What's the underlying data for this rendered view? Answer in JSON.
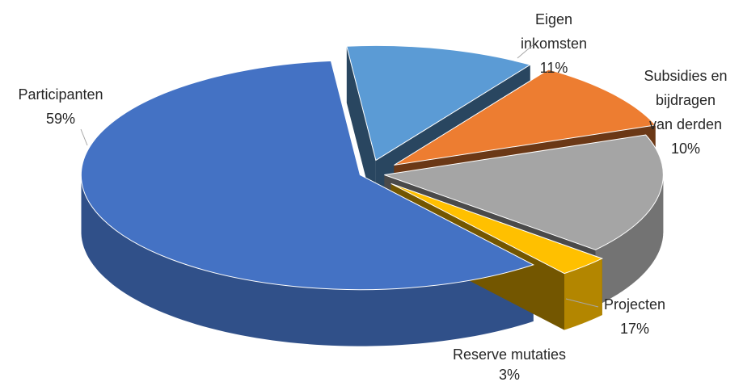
{
  "chart_data": {
    "type": "pie3d",
    "categories": [
      "Participanten",
      "Eigen inkomsten",
      "Subsidies en bijdragen van derden",
      "Projecten",
      "Reserve mutaties"
    ],
    "values": [
      59,
      11,
      10,
      17,
      3
    ],
    "value_labels": [
      "59%",
      "11%",
      "10%",
      "17%",
      "3%"
    ],
    "colors": [
      "#4472c4",
      "#5b9bd5",
      "#ed7d31",
      "#a5a5a5",
      "#ffc000"
    ]
  }
}
